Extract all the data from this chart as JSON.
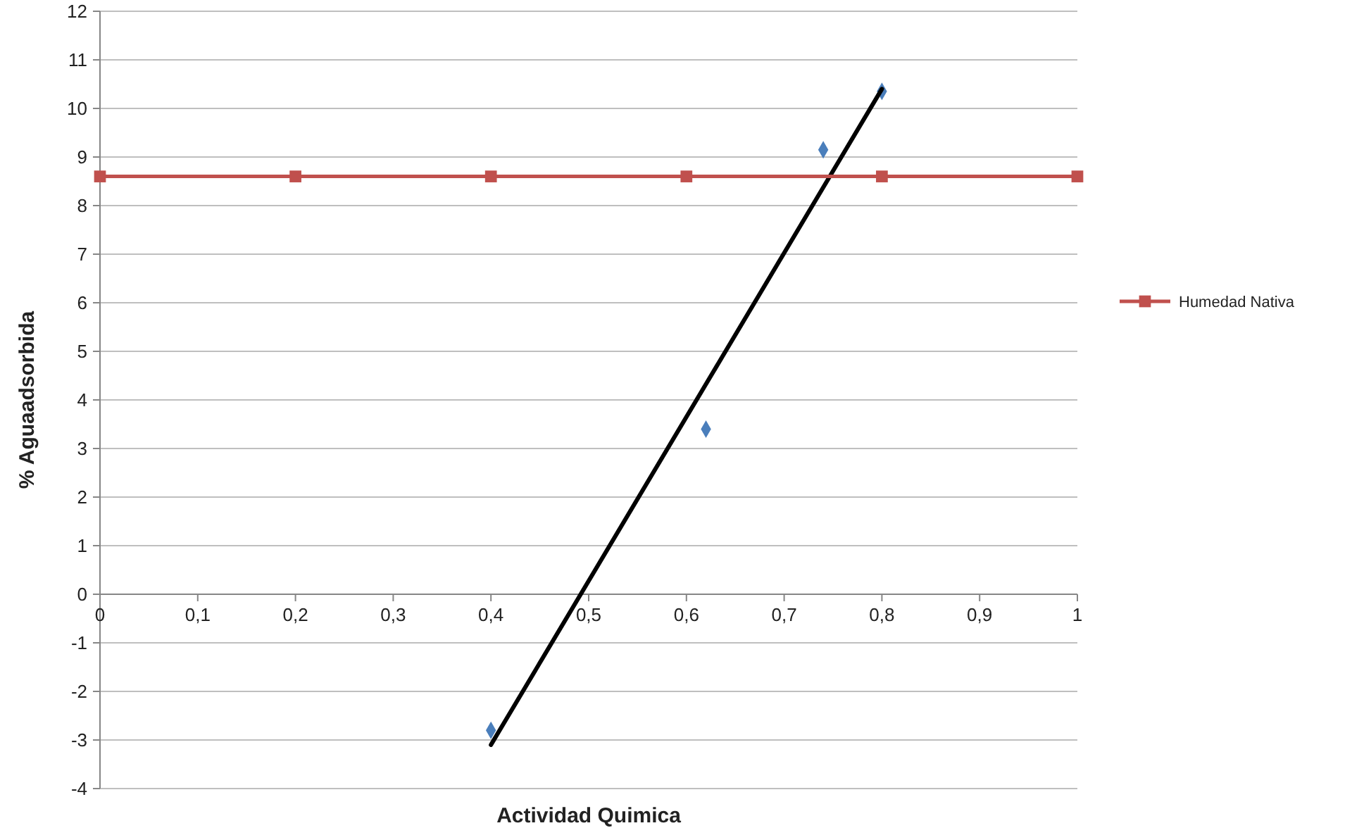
{
  "chart_data": {
    "type": "line",
    "xlabel": "Actividad Quimica",
    "ylabel": "% Aguaadsorbida",
    "xlim": [
      0,
      1
    ],
    "xticks": [
      0,
      {
        "value": 0.1,
        "label": "0,1"
      },
      {
        "value": 0.2,
        "label": "0,2"
      },
      {
        "value": 0.3,
        "label": "0,3"
      },
      {
        "value": 0.4,
        "label": "0,4"
      },
      {
        "value": 0.5,
        "label": "0,5"
      },
      {
        "value": 0.6,
        "label": "0,6"
      },
      {
        "value": 0.7,
        "label": "0,7"
      },
      {
        "value": 0.8,
        "label": "0,8"
      },
      {
        "value": 0.9,
        "label": "0,9"
      },
      1
    ],
    "ylim": [
      -4,
      12
    ],
    "yticks": [
      -4,
      -3,
      -2,
      -1,
      0,
      1,
      2,
      3,
      4,
      5,
      6,
      7,
      8,
      9,
      10,
      11,
      12
    ],
    "grid": "y",
    "legend": "right",
    "series": [
      {
        "type": "scatter",
        "color": "#4a7ebb",
        "marker": "diamond",
        "x": [
          0.4,
          0.62,
          0.74,
          0.8
        ],
        "values": [
          -2.8,
          3.4,
          9.15,
          10.35
        ]
      },
      {
        "color": "#000000",
        "marker": "none",
        "line_style": "solid",
        "x": [
          0.4,
          0.8
        ],
        "values": [
          -3.1,
          10.4
        ]
      },
      {
        "name": "Humedad Nativa",
        "color": "#c0504d",
        "marker": "square",
        "line_style": "solid",
        "x": [
          0,
          0.2,
          0.4,
          0.6,
          0.8,
          1
        ],
        "values": [
          8.6,
          8.6,
          8.6,
          8.6,
          8.6,
          8.6
        ]
      }
    ]
  }
}
